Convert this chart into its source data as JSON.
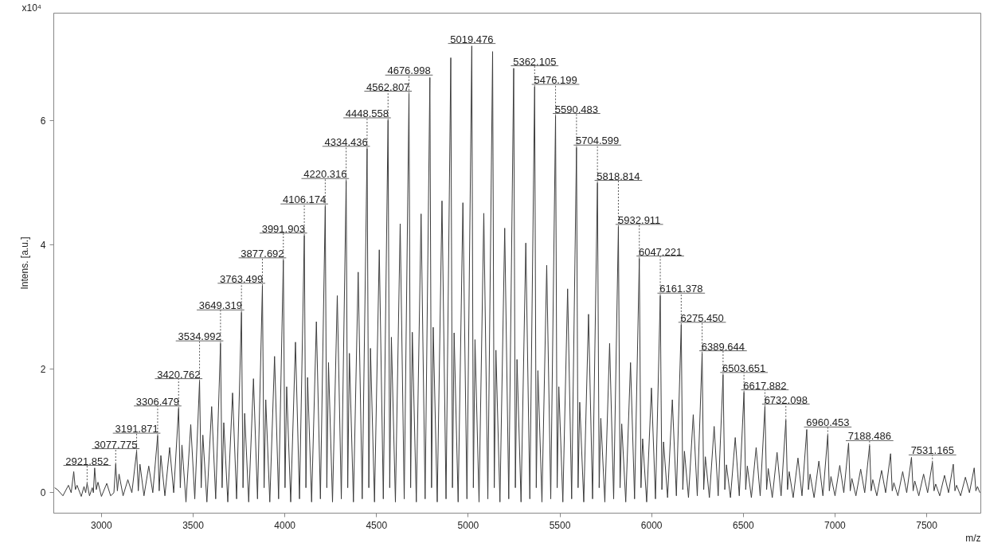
{
  "chart_data": {
    "type": "line",
    "xlabel": "m/z",
    "ylabel": "Intens. [a.u.]",
    "xlim": [
      2740,
      7795
    ],
    "ylim": [
      -0.33,
      7.74
    ],
    "xticks": [
      3000,
      3500,
      4000,
      4500,
      5000,
      5500,
      6000,
      6500,
      7000,
      7500
    ],
    "yticks": [
      0,
      2,
      4,
      6
    ],
    "grid": false,
    "series": [
      {
        "color": "#3c3c3c",
        "x": [
          2745,
          2760,
          2790,
          2820,
          2835,
          2849,
          2858,
          2867,
          2890,
          2905,
          2914,
          2921.852,
          2935,
          2950,
          2956,
          2963,
          2972,
          2981,
          3000,
          3029,
          3050,
          3068,
          3077.775,
          3087,
          3096,
          3118,
          3144,
          3166,
          3191.871,
          3201,
          3210,
          3232,
          3258,
          3280,
          3306.479,
          3315,
          3324,
          3346,
          3372,
          3394,
          3420.762,
          3430,
          3439,
          3461,
          3487,
          3509,
          3534.992,
          3544,
          3553,
          3575,
          3601,
          3623,
          3649.319,
          3658,
          3667,
          3689,
          3715,
          3737,
          3763.499,
          3772,
          3781,
          3803,
          3829,
          3851,
          3877.692,
          3887,
          3896,
          3918,
          3944,
          3966,
          3991.903,
          4001,
          4010,
          4032,
          4058,
          4080,
          4106.174,
          4115,
          4124,
          4146,
          4172,
          4194,
          4220.316,
          4229,
          4238,
          4260,
          4286,
          4308,
          4334.436,
          4343,
          4352,
          4374,
          4400,
          4422,
          4448.558,
          4458,
          4467,
          4489,
          4515,
          4537,
          4562.807,
          4572,
          4581,
          4603,
          4629,
          4651,
          4676.998,
          4686,
          4695,
          4717,
          4743,
          4765,
          4791,
          4800,
          4809,
          4831,
          4857,
          4879,
          4905,
          4914,
          4923,
          4945,
          4971,
          4993,
          5019.476,
          5028,
          5037,
          5059,
          5085,
          5107,
          5133,
          5142,
          5151,
          5173,
          5199,
          5221,
          5248,
          5257,
          5266,
          5288,
          5314,
          5336,
          5362.105,
          5371,
          5380,
          5402,
          5428,
          5450,
          5476.199,
          5485,
          5494,
          5516,
          5542,
          5564,
          5590.483,
          5599,
          5608,
          5630,
          5656,
          5678,
          5704.599,
          5714,
          5723,
          5745,
          5771,
          5793,
          5818.814,
          5828,
          5837,
          5859,
          5885,
          5907,
          5932.911,
          5942,
          5951,
          5973,
          5999,
          6021,
          6047.221,
          6056,
          6065,
          6087,
          6113,
          6135,
          6161.378,
          6170,
          6179,
          6201,
          6227,
          6249,
          6275.45,
          6284,
          6293,
          6315,
          6341,
          6363,
          6389.644,
          6399,
          6408,
          6430,
          6456,
          6478,
          6503.651,
          6513,
          6522,
          6544,
          6570,
          6592,
          6617.882,
          6627,
          6636,
          6658,
          6684,
          6706,
          6732.098,
          6741,
          6750,
          6772,
          6798,
          6820,
          6846,
          6855,
          6864,
          6886,
          6912,
          6934,
          6960.453,
          6969,
          6978,
          7000,
          7026,
          7048,
          7074,
          7083,
          7092,
          7114,
          7140,
          7162,
          7188.486,
          7197,
          7206,
          7228,
          7254,
          7276,
          7303,
          7312,
          7321,
          7343,
          7369,
          7391,
          7417,
          7426,
          7435,
          7457,
          7483,
          7505,
          7531.165,
          7540,
          7549,
          7571,
          7597,
          7619,
          7645,
          7654,
          7663,
          7685,
          7711,
          7733,
          7759,
          7768,
          7777,
          7790
        ],
        "values": [
          0.08,
          0.05,
          -0.05,
          0.12,
          0.0,
          0.34,
          0.05,
          0.12,
          -0.06,
          0.1,
          0.0,
          0.15,
          -0.05,
          0.08,
          0.0,
          0.4,
          0.05,
          0.17,
          -0.06,
          0.15,
          -0.05,
          0.0,
          0.46,
          0.03,
          0.3,
          -0.05,
          0.21,
          0.0,
          0.67,
          0.03,
          0.46,
          -0.05,
          0.43,
          0.0,
          0.92,
          0.03,
          0.6,
          -0.05,
          0.73,
          0.0,
          1.36,
          0.08,
          0.77,
          -0.15,
          1.1,
          -0.1,
          1.8,
          0.08,
          0.93,
          -0.15,
          1.39,
          -0.1,
          2.41,
          0.08,
          1.13,
          -0.15,
          1.61,
          -0.1,
          2.91,
          0.08,
          1.28,
          -0.15,
          1.84,
          -0.1,
          3.34,
          0.08,
          1.5,
          -0.15,
          2.2,
          -0.1,
          3.75,
          0.08,
          1.71,
          -0.15,
          2.43,
          -0.1,
          4.15,
          0.08,
          1.86,
          -0.15,
          2.76,
          -0.1,
          4.62,
          0.08,
          2.1,
          -0.15,
          3.18,
          -0.1,
          5.03,
          0.08,
          2.25,
          -0.15,
          3.56,
          -0.1,
          5.55,
          0.08,
          2.33,
          -0.15,
          3.92,
          -0.1,
          6.01,
          0.08,
          2.51,
          -0.15,
          4.34,
          -0.1,
          6.44,
          0.08,
          2.59,
          -0.15,
          4.5,
          -0.1,
          6.7,
          0.08,
          2.67,
          -0.15,
          4.71,
          -0.1,
          7.02,
          0.08,
          2.58,
          -0.15,
          4.68,
          -0.1,
          7.21,
          0.08,
          2.47,
          -0.15,
          4.51,
          -0.1,
          7.12,
          0.08,
          2.3,
          -0.15,
          4.27,
          -0.1,
          6.85,
          0.08,
          2.15,
          -0.15,
          4.03,
          -0.1,
          6.55,
          0.08,
          1.97,
          -0.15,
          3.67,
          -0.1,
          6.08,
          0.08,
          1.71,
          -0.15,
          3.29,
          -0.1,
          5.57,
          0.08,
          1.46,
          -0.15,
          2.88,
          -0.1,
          5.0,
          0.08,
          1.2,
          -0.15,
          2.41,
          -0.1,
          4.29,
          0.08,
          1.11,
          -0.15,
          2.1,
          -0.1,
          3.78,
          0.08,
          0.87,
          -0.15,
          1.69,
          -0.1,
          3.18,
          0.05,
          0.82,
          -0.08,
          1.5,
          -0.05,
          2.71,
          0.05,
          0.67,
          -0.08,
          1.26,
          -0.05,
          2.25,
          0.05,
          0.58,
          -0.08,
          1.07,
          -0.05,
          1.9,
          0.05,
          0.45,
          -0.08,
          0.89,
          -0.05,
          1.62,
          0.05,
          0.43,
          -0.08,
          0.73,
          -0.05,
          1.39,
          0.05,
          0.39,
          -0.08,
          0.65,
          -0.05,
          1.17,
          0.05,
          0.34,
          -0.08,
          0.56,
          -0.05,
          1.02,
          0.05,
          0.3,
          -0.08,
          0.51,
          -0.05,
          0.93,
          0.03,
          0.26,
          -0.05,
          0.44,
          0.0,
          0.8,
          0.03,
          0.23,
          -0.05,
          0.38,
          0.0,
          0.76,
          0.03,
          0.21,
          -0.05,
          0.36,
          0.0,
          0.63,
          0.03,
          0.16,
          -0.05,
          0.34,
          0.0,
          0.57,
          0.03,
          0.19,
          -0.05,
          0.3,
          0.0,
          0.49,
          0.03,
          0.14,
          -0.05,
          0.28,
          0.0,
          0.46,
          0.03,
          0.12,
          -0.05,
          0.25,
          0.0,
          0.4,
          0.03,
          0.1,
          0.0
        ]
      }
    ],
    "annotations": [
      "x10⁴",
      {
        "text": "2921.852",
        "x": 2921.852,
        "y": 0.15
      },
      {
        "text": "3077.775",
        "x": 3077.775,
        "y": 0.46
      },
      {
        "text": "3191.871",
        "x": 3191.871,
        "y": 0.67
      },
      {
        "text": "3306.479",
        "x": 3306.479,
        "y": 0.92
      },
      {
        "text": "3420.762",
        "x": 3420.762,
        "y": 1.36
      },
      {
        "text": "3534.992",
        "x": 3534.992,
        "y": 1.8
      },
      {
        "text": "3649.319",
        "x": 3649.319,
        "y": 2.41
      },
      {
        "text": "3763.499",
        "x": 3763.499,
        "y": 2.91
      },
      {
        "text": "3877.692",
        "x": 3877.692,
        "y": 3.34
      },
      {
        "text": "3991.903",
        "x": 3991.903,
        "y": 3.75
      },
      {
        "text": "4106.174",
        "x": 4106.174,
        "y": 4.15
      },
      {
        "text": "4220.316",
        "x": 4220.316,
        "y": 4.62
      },
      {
        "text": "4334.436",
        "x": 4334.436,
        "y": 5.03
      },
      {
        "text": "4448.558",
        "x": 4448.558,
        "y": 5.55
      },
      {
        "text": "4562.807",
        "x": 4562.807,
        "y": 6.01
      },
      {
        "text": "4676.998",
        "x": 4676.998,
        "y": 6.44
      },
      {
        "text": "5019.476",
        "x": 5019.476,
        "y": 7.21
      },
      {
        "text": "5362.105",
        "x": 5362.105,
        "y": 6.55
      },
      {
        "text": "5476.199",
        "x": 5476.199,
        "y": 6.08
      },
      {
        "text": "5590.483",
        "x": 5590.483,
        "y": 5.57
      },
      {
        "text": "5704.599",
        "x": 5704.599,
        "y": 5.0
      },
      {
        "text": "5818.814",
        "x": 5818.814,
        "y": 4.29
      },
      {
        "text": "5932.911",
        "x": 5932.911,
        "y": 3.78
      },
      {
        "text": "6047.221",
        "x": 6047.221,
        "y": 3.18
      },
      {
        "text": "6161.378",
        "x": 6161.378,
        "y": 2.71
      },
      {
        "text": "6275.450",
        "x": 6275.45,
        "y": 2.25
      },
      {
        "text": "6389.644",
        "x": 6389.644,
        "y": 1.9
      },
      {
        "text": "6503.651",
        "x": 6503.651,
        "y": 1.62
      },
      {
        "text": "6617.882",
        "x": 6617.882,
        "y": 1.39
      },
      {
        "text": "6732.098",
        "x": 6732.098,
        "y": 1.17
      },
      {
        "text": "6960.453",
        "x": 6960.453,
        "y": 0.93
      },
      {
        "text": "7188.486",
        "x": 7188.486,
        "y": 0.76
      },
      {
        "text": "7531.165",
        "x": 7531.165,
        "y": 0.49
      }
    ]
  }
}
